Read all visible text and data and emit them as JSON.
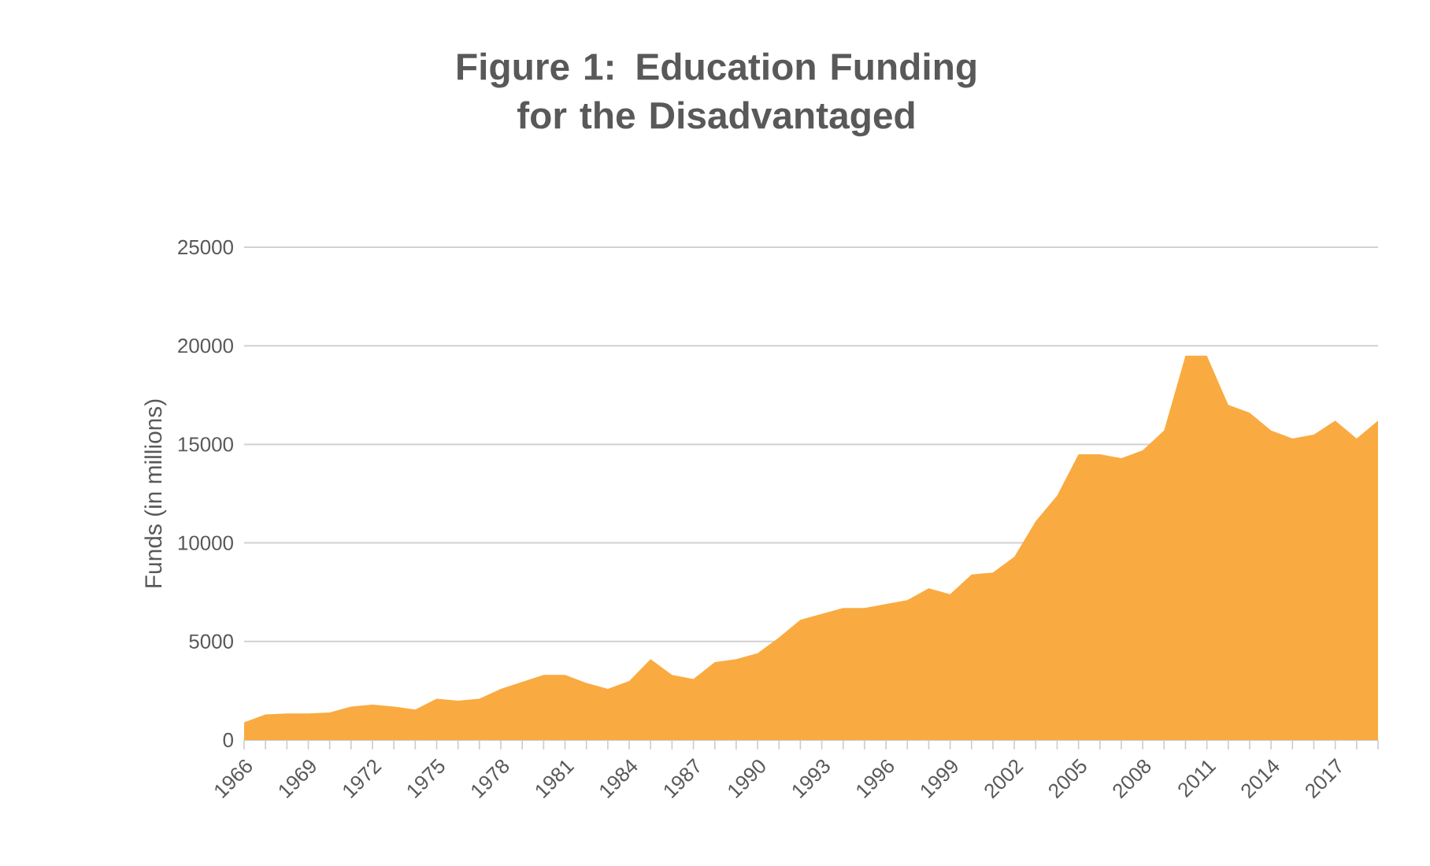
{
  "chart_data": {
    "type": "area",
    "title": "Figure 1: Education Funding for the Disadvantaged",
    "ylabel": "Funds (in millions)",
    "categories": [
      "1966",
      null,
      null,
      "1969",
      null,
      null,
      "1972",
      null,
      null,
      "1975",
      null,
      null,
      "1978",
      null,
      null,
      "1981",
      null,
      null,
      "1984",
      null,
      null,
      "1987",
      null,
      null,
      "1990",
      null,
      null,
      "1993",
      null,
      null,
      "1996",
      null,
      null,
      "1999",
      null,
      null,
      "2002",
      null,
      null,
      "2005",
      null,
      null,
      "2008",
      null,
      null,
      "2011",
      null,
      null,
      "2014",
      null,
      null,
      "2017",
      null,
      null
    ],
    "values": [
      900,
      1300,
      1350,
      1350,
      1400,
      1700,
      1800,
      1700,
      1550,
      2100,
      2000,
      2100,
      2600,
      2950,
      3300,
      3300,
      2900,
      2600,
      3000,
      4100,
      3300,
      3100,
      3950,
      4100,
      4400,
      5200,
      6100,
      6400,
      6700,
      6700,
      6900,
      7100,
      7700,
      7400,
      8400,
      8500,
      9300,
      11100,
      12400,
      14500,
      14500,
      14300,
      14700,
      15700,
      19500,
      19500,
      17000,
      16600,
      15700,
      15300,
      15500,
      16200,
      15300,
      16200
    ],
    "color": "#f9ab41",
    "ylim": [
      0,
      25000
    ],
    "yticks": [
      0,
      5000,
      10000,
      15000,
      20000,
      25000
    ],
    "grid": "y"
  }
}
